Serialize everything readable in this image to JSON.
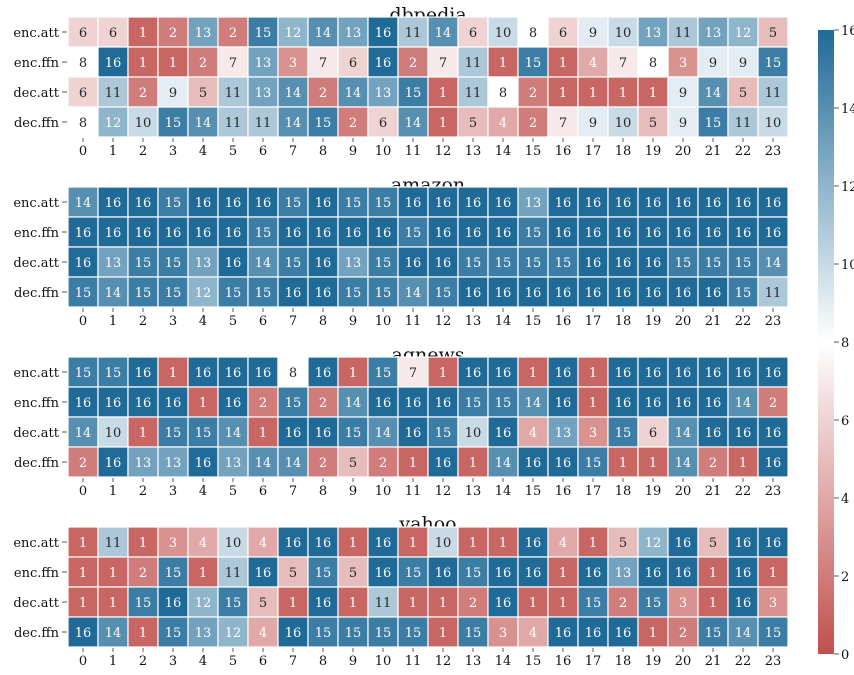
{
  "chart_data": {
    "type": "heatmap",
    "rows": [
      "enc.att",
      "enc.ffn",
      "dec.att",
      "dec.ffn"
    ],
    "columns": [
      "0",
      "1",
      "2",
      "3",
      "4",
      "5",
      "6",
      "7",
      "8",
      "9",
      "10",
      "11",
      "12",
      "13",
      "14",
      "15",
      "16",
      "17",
      "18",
      "19",
      "20",
      "21",
      "22",
      "23"
    ],
    "vmin": 0,
    "vmax": 16,
    "colorbar_ticks": [
      0,
      2,
      4,
      6,
      8,
      10,
      12,
      14,
      16
    ],
    "colormap": {
      "low": "#c0504d",
      "mid": "#ffffff",
      "high": "#1f6a97"
    },
    "panels": [
      {
        "title": "dbpedia",
        "values": [
          [
            6,
            6,
            1,
            2,
            13,
            2,
            15,
            12,
            14,
            13,
            16,
            11,
            14,
            6,
            10,
            8,
            6,
            9,
            10,
            13,
            11,
            13,
            12,
            5
          ],
          [
            8,
            16,
            1,
            1,
            2,
            7,
            13,
            3,
            7,
            6,
            16,
            2,
            7,
            11,
            1,
            15,
            1,
            4,
            7,
            8,
            3,
            9,
            9,
            15
          ],
          [
            6,
            11,
            2,
            9,
            5,
            11,
            13,
            14,
            2,
            14,
            13,
            15,
            1,
            11,
            8,
            2,
            1,
            1,
            1,
            1,
            9,
            14,
            5,
            11
          ],
          [
            8,
            12,
            10,
            15,
            14,
            11,
            11,
            14,
            15,
            2,
            6,
            14,
            1,
            5,
            4,
            2,
            7,
            9,
            10,
            5,
            9,
            15,
            11,
            10
          ]
        ]
      },
      {
        "title": "amazon",
        "values": [
          [
            14,
            16,
            16,
            15,
            16,
            16,
            16,
            15,
            16,
            15,
            15,
            16,
            16,
            16,
            16,
            13,
            16,
            16,
            16,
            16,
            16,
            16,
            16,
            16
          ],
          [
            16,
            16,
            16,
            16,
            16,
            16,
            15,
            16,
            16,
            16,
            16,
            15,
            16,
            16,
            16,
            15,
            16,
            16,
            16,
            16,
            16,
            16,
            16,
            16
          ],
          [
            16,
            13,
            15,
            15,
            13,
            16,
            14,
            15,
            16,
            13,
            15,
            16,
            16,
            15,
            15,
            15,
            15,
            16,
            16,
            16,
            15,
            15,
            15,
            14
          ],
          [
            15,
            14,
            15,
            15,
            12,
            15,
            15,
            16,
            16,
            15,
            15,
            14,
            15,
            16,
            16,
            16,
            16,
            16,
            16,
            16,
            16,
            16,
            15,
            11
          ]
        ]
      },
      {
        "title": "agnews",
        "values": [
          [
            15,
            15,
            16,
            1,
            16,
            16,
            16,
            8,
            16,
            1,
            15,
            7,
            1,
            16,
            16,
            1,
            16,
            1,
            16,
            16,
            16,
            16,
            16,
            16
          ],
          [
            16,
            16,
            16,
            16,
            1,
            16,
            2,
            15,
            2,
            14,
            16,
            16,
            16,
            15,
            15,
            14,
            16,
            1,
            16,
            16,
            16,
            16,
            14,
            2
          ],
          [
            14,
            10,
            1,
            15,
            15,
            14,
            1,
            16,
            16,
            15,
            14,
            16,
            15,
            10,
            16,
            4,
            13,
            3,
            15,
            6,
            14,
            16,
            16,
            16
          ],
          [
            2,
            16,
            13,
            13,
            16,
            13,
            14,
            14,
            2,
            5,
            2,
            1,
            16,
            1,
            14,
            16,
            16,
            15,
            1,
            1,
            14,
            2,
            1,
            16
          ]
        ]
      },
      {
        "title": "yahoo",
        "values": [
          [
            1,
            11,
            1,
            3,
            4,
            10,
            4,
            16,
            16,
            1,
            16,
            1,
            10,
            1,
            1,
            16,
            4,
            1,
            5,
            12,
            16,
            5,
            16,
            16
          ],
          [
            1,
            1,
            2,
            15,
            1,
            11,
            16,
            5,
            15,
            5,
            16,
            15,
            16,
            15,
            16,
            16,
            1,
            16,
            13,
            16,
            16,
            1,
            16,
            1
          ],
          [
            1,
            1,
            15,
            16,
            12,
            15,
            5,
            1,
            16,
            1,
            11,
            1,
            1,
            2,
            16,
            1,
            1,
            15,
            2,
            15,
            3,
            1,
            16,
            3
          ],
          [
            16,
            14,
            1,
            15,
            13,
            12,
            4,
            16,
            15,
            15,
            15,
            15,
            1,
            15,
            3,
            4,
            16,
            16,
            16,
            1,
            2,
            15,
            14,
            15
          ]
        ]
      }
    ]
  }
}
